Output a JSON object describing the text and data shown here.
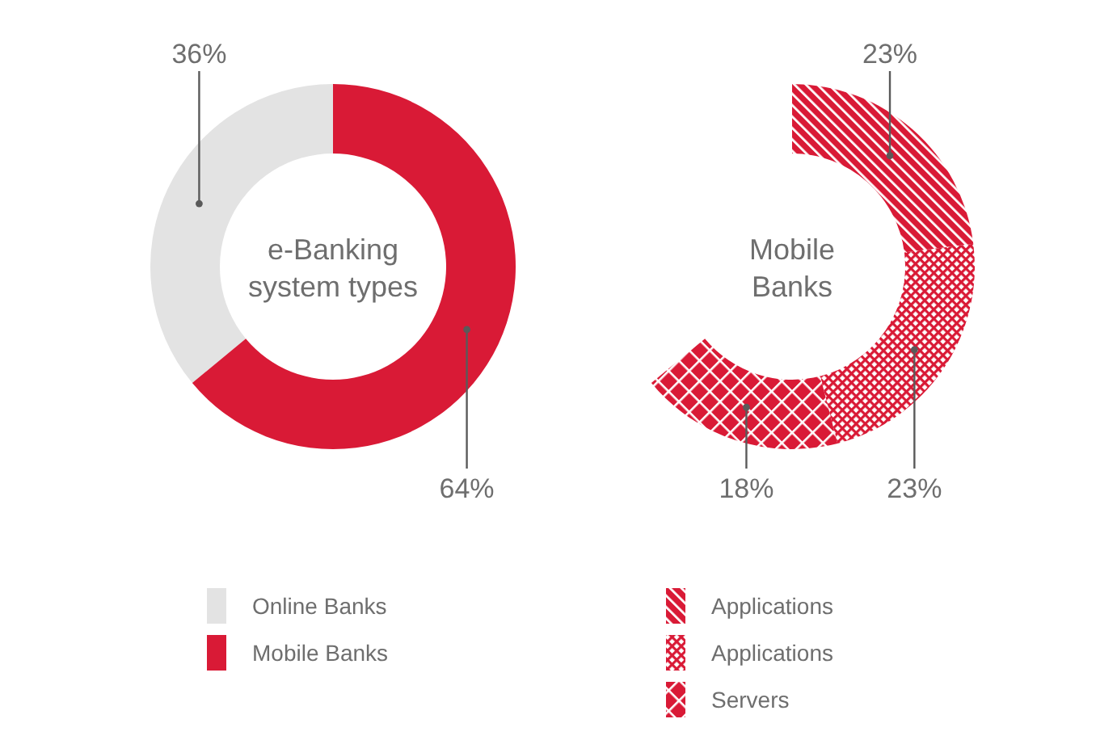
{
  "chart_data": [
    {
      "type": "donut",
      "title": "e-Banking system types",
      "categories": [
        "Online Banks",
        "Mobile Banks"
      ],
      "values": [
        36,
        64
      ],
      "colors": [
        "#e3e3e3",
        "#d91a36"
      ],
      "value_labels": [
        "36%",
        "64%"
      ],
      "legend": "bottom"
    },
    {
      "type": "donut",
      "title": "Mobile Banks",
      "categories": [
        "Applications",
        "Applications",
        "Servers"
      ],
      "values": [
        23,
        23,
        18
      ],
      "colors": [
        "#d91a36",
        "#d91a36",
        "#d91a36"
      ],
      "value_labels": [
        "23%",
        "23%",
        "18%"
      ],
      "legend": "bottom"
    }
  ]
}
